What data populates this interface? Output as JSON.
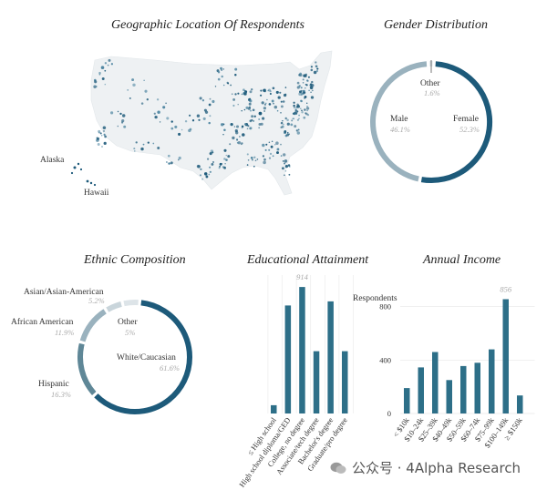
{
  "titles": {
    "map": "Geographic Location Of Respondents",
    "gender": "Gender Distribution",
    "ethnic": "Ethnic Composition",
    "education": "Educational Attainment",
    "income": "Annual Income"
  },
  "map_labels": {
    "alaska": "Alaska",
    "hawaii": "Hawaii"
  },
  "colors": {
    "dark": "#1d5a7a",
    "mid": "#9ab2be",
    "light": "#dde4e8",
    "bar": "#2d6f88"
  },
  "watermark": "公众号 · 4Alpha Research",
  "chart_data": [
    {
      "type": "pie",
      "title": "Gender Distribution",
      "slices": [
        {
          "label": "Female",
          "value": 52.3,
          "display": "52.3%",
          "color": "#1d5a7a"
        },
        {
          "label": "Male",
          "value": 46.1,
          "display": "46.1%",
          "color": "#9ab2be"
        },
        {
          "label": "Other",
          "value": 1.6,
          "display": "1.6%",
          "color": "#dde4e8"
        }
      ]
    },
    {
      "type": "pie",
      "title": "Ethnic Composition",
      "slices": [
        {
          "label": "White/Caucasian",
          "value": 61.6,
          "display": "61.6%",
          "color": "#1d5a7a"
        },
        {
          "label": "Hispanic",
          "value": 16.3,
          "display": "16.3%",
          "color": "#5f8797"
        },
        {
          "label": "African American",
          "value": 11.9,
          "display": "11.9%",
          "color": "#9ab2be"
        },
        {
          "label": "Asian/Asian-American",
          "value": 5.2,
          "display": "5.2%",
          "color": "#c9d5db"
        },
        {
          "label": "Other",
          "value": 5,
          "display": "5%",
          "color": "#dde4e8"
        }
      ]
    },
    {
      "type": "bar",
      "title": "Educational Attainment",
      "categories": [
        "≤ High school",
        "High school diploma/GED",
        "College, no degree",
        "Associate/tech degree",
        "Bachelor's degree",
        "Graduate/pro degree"
      ],
      "values": [
        60,
        780,
        914,
        450,
        810,
        450
      ],
      "annotations": [
        {
          "index": 2,
          "text": "914"
        }
      ],
      "ylim": [
        0,
        1000
      ]
    },
    {
      "type": "bar",
      "title": "Annual Income",
      "ylabel": "Respondents",
      "categories": [
        "< $10k",
        "$10–24k",
        "$25–39k",
        "$40–49k",
        "$50–59k",
        "$60–74k",
        "$75–99k",
        "$100–149k",
        "≥ $150k"
      ],
      "values": [
        190,
        345,
        460,
        250,
        355,
        380,
        480,
        856,
        135
      ],
      "annotations": [
        {
          "index": 7,
          "text": "856"
        }
      ],
      "yticks": [
        0,
        400,
        800
      ],
      "ylim": [
        0,
        900
      ]
    }
  ]
}
